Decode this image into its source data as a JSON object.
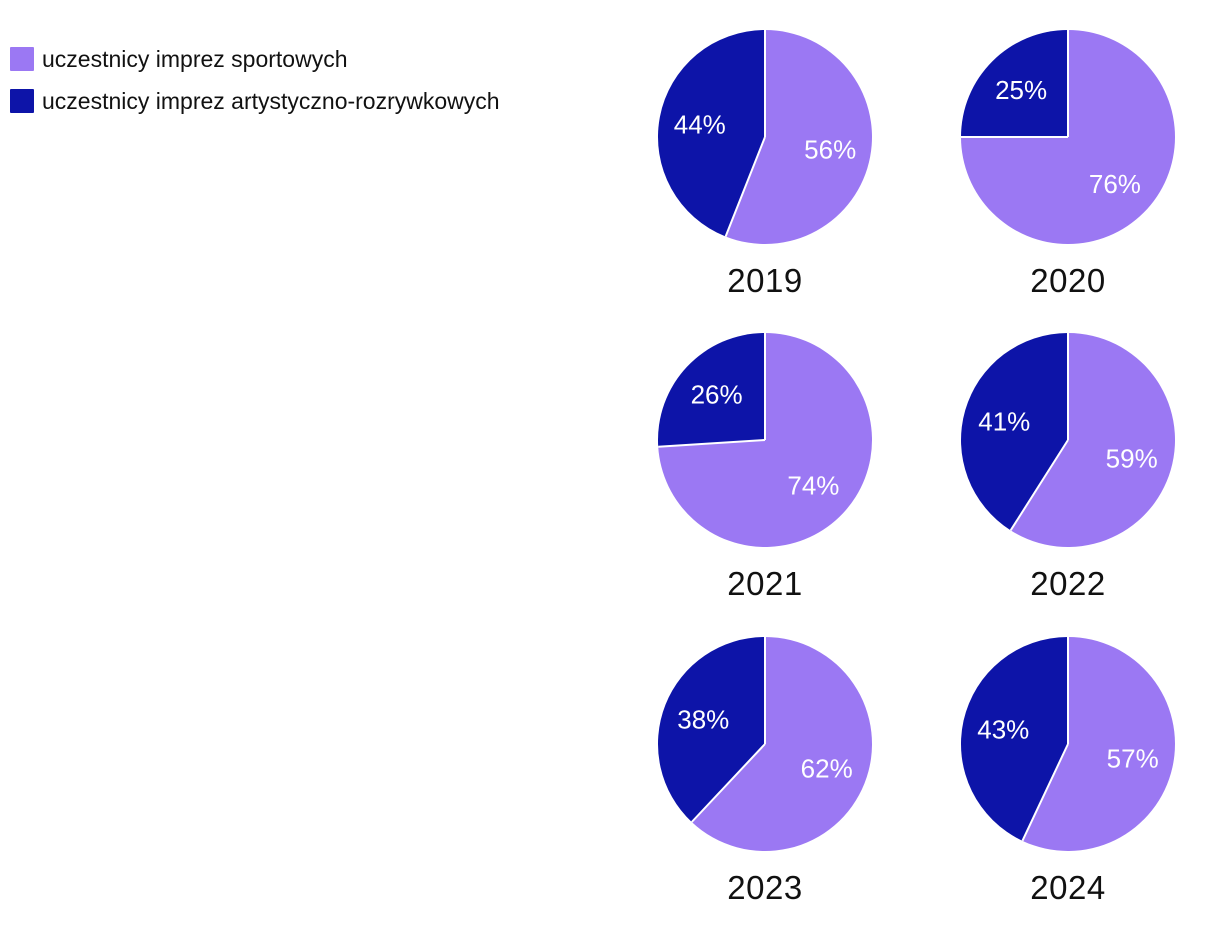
{
  "figure": {
    "background": "#ffffff",
    "legend": {
      "items": [
        {
          "label": "uczestnicy imprez sportowych",
          "color": "#9b78f3"
        },
        {
          "label": "uczestnicy imprez artystyczno-rozrywkowych",
          "color": "#0d14a8"
        }
      ]
    }
  },
  "chart_data": {
    "type": "pie",
    "title": "",
    "layout": "2-column by 3-row grid of pies, one per year; legend top-left; percent labels inside slices; slices start at 12 o'clock, sport slice drawn clockwise first",
    "legend_position": "top-left",
    "start_angle_deg": 0,
    "direction": "clockwise",
    "separator_color": "#ffffff",
    "categories": [
      "2019",
      "2020",
      "2021",
      "2022",
      "2023",
      "2024"
    ],
    "series": [
      {
        "name": "uczestnicy imprez sportowych",
        "color": "#9b78f3",
        "values": [
          56,
          76,
          74,
          59,
          62,
          57
        ],
        "labels": [
          "56%",
          "76%",
          "74%",
          "59%",
          "62%",
          "57%"
        ]
      },
      {
        "name": "uczestnicy imprez artystyczno-rozrywkowych",
        "color": "#0d14a8",
        "values": [
          44,
          25,
          26,
          41,
          38,
          43
        ],
        "labels": [
          "44%",
          "25%",
          "26%",
          "41%",
          "38%",
          "43%"
        ]
      }
    ],
    "label_format": "percent",
    "note": "2020 printed labels sum to 101% (76% + 25%); the drawn dark-blue slice is exactly 25% of the circle"
  }
}
